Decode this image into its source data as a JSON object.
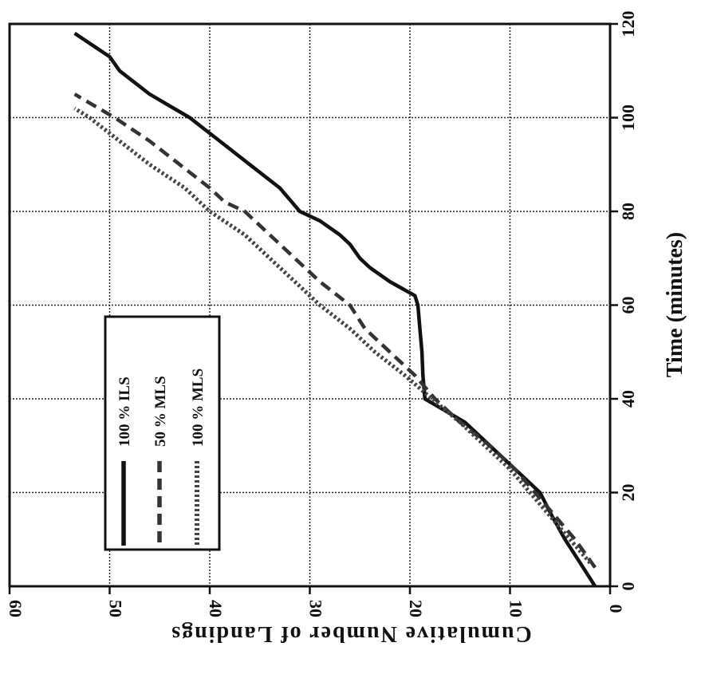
{
  "chart_data": {
    "type": "line",
    "orientation": "rotated-90",
    "xlabel": "Time (minutes)",
    "ylabel": "Cumulative Number of Landings",
    "xlim": [
      0,
      120
    ],
    "ylim": [
      0,
      60
    ],
    "x_ticks": [
      "0",
      "20",
      "40",
      "60",
      "80",
      "100",
      "120"
    ],
    "y_ticks": [
      "0",
      "10",
      "20",
      "30",
      "40",
      "50",
      "60"
    ],
    "grid": true,
    "legend_position": "inside-left",
    "series": [
      {
        "name": "100 % ILS",
        "style": "solid",
        "color": "#111111",
        "points": [
          [
            0,
            1.5
          ],
          [
            5,
            3
          ],
          [
            10,
            4.5
          ],
          [
            15,
            5.8
          ],
          [
            20,
            7
          ],
          [
            25,
            9.5
          ],
          [
            30,
            12
          ],
          [
            35,
            14.5
          ],
          [
            40,
            18.5
          ],
          [
            45,
            18.7
          ],
          [
            50,
            18.8
          ],
          [
            55,
            19
          ],
          [
            60,
            19.2
          ],
          [
            62,
            19.5
          ],
          [
            65,
            22
          ],
          [
            68,
            24
          ],
          [
            70,
            25
          ],
          [
            73,
            26
          ],
          [
            75,
            27
          ],
          [
            78,
            29
          ],
          [
            80,
            31
          ],
          [
            85,
            33
          ],
          [
            90,
            36
          ],
          [
            95,
            39
          ],
          [
            100,
            42
          ],
          [
            105,
            46
          ],
          [
            110,
            49
          ],
          [
            113,
            50
          ],
          [
            118,
            53.5
          ]
        ]
      },
      {
        "name": "50 % MLS",
        "style": "dashed",
        "color": "#333333",
        "points": [
          [
            4,
            1.5
          ],
          [
            10,
            3.5
          ],
          [
            20,
            7.5
          ],
          [
            25,
            9.5
          ],
          [
            30,
            12
          ],
          [
            35,
            15
          ],
          [
            40,
            17.5
          ],
          [
            45,
            19.5
          ],
          [
            50,
            22
          ],
          [
            55,
            24.5
          ],
          [
            60,
            26
          ],
          [
            65,
            29
          ],
          [
            70,
            31.5
          ],
          [
            75,
            34
          ],
          [
            80,
            36.5
          ],
          [
            82,
            38.5
          ],
          [
            85,
            40
          ],
          [
            90,
            43
          ],
          [
            95,
            46
          ],
          [
            100,
            49.5
          ],
          [
            105,
            53.5
          ]
        ]
      },
      {
        "name": "100 % MLS",
        "style": "dotted",
        "color": "#444444",
        "points": [
          [
            5,
            2
          ],
          [
            10,
            4
          ],
          [
            15,
            6
          ],
          [
            20,
            8
          ],
          [
            25,
            10
          ],
          [
            30,
            12.5
          ],
          [
            35,
            15
          ],
          [
            40,
            17.8
          ],
          [
            45,
            20.5
          ],
          [
            50,
            23.5
          ],
          [
            55,
            26
          ],
          [
            60,
            29
          ],
          [
            65,
            31.5
          ],
          [
            70,
            34
          ],
          [
            75,
            36.5
          ],
          [
            80,
            40
          ],
          [
            85,
            42.5
          ],
          [
            90,
            46
          ],
          [
            95,
            49
          ],
          [
            100,
            52
          ],
          [
            102,
            53.5
          ]
        ]
      }
    ]
  }
}
